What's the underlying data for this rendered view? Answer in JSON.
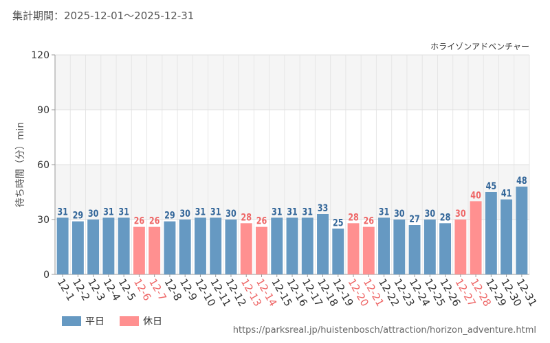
{
  "chart_data": {
    "type": "bar",
    "period_label": "集計期間：2025-12-01～2025-12-31",
    "series_name": "ホライゾンアドベンチャー",
    "ylabel": "待ち時間（分）min",
    "ylim": [
      0,
      120
    ],
    "yticks": [
      "0",
      "30",
      "60",
      "90",
      "120"
    ],
    "categories": [
      "12-1",
      "12-2",
      "12-3",
      "12-4",
      "12-5",
      "12-6",
      "12-7",
      "12-8",
      "12-9",
      "12-10",
      "12-11",
      "12-12",
      "12-13",
      "12-14",
      "12-15",
      "12-16",
      "12-17",
      "12-18",
      "12-19",
      "12-20",
      "12-21",
      "12-22",
      "12-23",
      "12-24",
      "12-25",
      "12-26",
      "12-27",
      "12-28",
      "12-29",
      "12-30",
      "12-31"
    ],
    "values": [
      31,
      29,
      30,
      31,
      31,
      26,
      26,
      29,
      30,
      31,
      31,
      30,
      28,
      26,
      31,
      31,
      31,
      33,
      25,
      28,
      26,
      31,
      30,
      27,
      30,
      28,
      30,
      40,
      45,
      41,
      48
    ],
    "holiday": [
      false,
      false,
      false,
      false,
      false,
      true,
      true,
      false,
      false,
      false,
      false,
      false,
      true,
      true,
      false,
      false,
      false,
      false,
      false,
      true,
      true,
      false,
      false,
      false,
      false,
      false,
      true,
      true,
      false,
      false,
      false
    ],
    "legend": [
      {
        "label": "平日",
        "color": "#6699c2"
      },
      {
        "label": "休日",
        "color": "#ff9090"
      }
    ],
    "weekday_label_color": "#336699",
    "holiday_label_color": "#ee6666"
  },
  "footer": {
    "url": "https://parksreal.jp/huistenbosch/attraction/horizon_adventure.html"
  }
}
